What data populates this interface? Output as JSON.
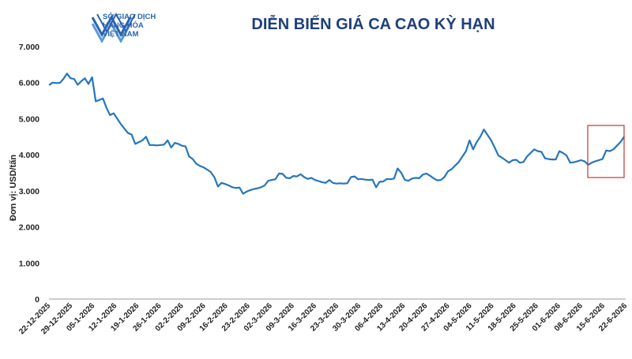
{
  "logo": {
    "line1": "SỞ GIAO DỊCH",
    "line2": "HÀNG HÓA",
    "line3": "VIỆT NAM",
    "icon": "stacked-chevron-logo-icon"
  },
  "title": "DIỄN BIẾN GIÁ CA CAO KỲ HẠN",
  "colors": {
    "line": "#2576bd",
    "title": "#1f3f7a",
    "logo": "#2a64b0",
    "highlight": "#c0392b"
  },
  "chart_data": {
    "type": "line",
    "title": "DIỄN BIẾN GIÁ CA CAO KỲ HẠN",
    "ylabel": "Đơn vị: USD/tấn",
    "xlabel": "",
    "ylim": [
      0,
      7000
    ],
    "yticks": [
      0,
      1000,
      2000,
      3000,
      4000,
      5000,
      6000,
      7000
    ],
    "ytick_labels": [
      "0",
      "1.000",
      "2.000",
      "3.000",
      "4.000",
      "5.000",
      "6.000",
      "7.000"
    ],
    "grid": false,
    "x_tick_labels": [
      "22-12-2025",
      "29-12-2025",
      "05-1-2026",
      "12-1-2026",
      "19-1-2026",
      "26-1-2026",
      "02-2-2026",
      "09-2-2026",
      "16-2-2026",
      "23-2-2026",
      "02-3-2026",
      "09-3-2026",
      "16-3-2026",
      "23-3-2026",
      "30-3-2026",
      "06-4-2026",
      "13-4-2026",
      "20-4-2026",
      "27-4-2026",
      "04-5-2026",
      "11-5-2026",
      "18-5-2026",
      "25-5-2026",
      "01-6-2026",
      "08-6-2026",
      "15-6-2026",
      "22-6-2026"
    ],
    "values": [
      5930,
      6000,
      5990,
      5990,
      6100,
      6250,
      6120,
      6100,
      5940,
      6040,
      6120,
      5960,
      6150,
      5480,
      5520,
      5560,
      5300,
      5100,
      5150,
      5000,
      4850,
      4720,
      4600,
      4560,
      4300,
      4350,
      4400,
      4500,
      4270,
      4270,
      4260,
      4270,
      4280,
      4400,
      4200,
      4330,
      4300,
      4250,
      4230,
      3950,
      3880,
      3750,
      3690,
      3650,
      3590,
      3520,
      3380,
      3120,
      3220,
      3190,
      3150,
      3100,
      3080,
      3090,
      2920,
      2980,
      3020,
      3050,
      3070,
      3100,
      3150,
      3280,
      3300,
      3320,
      3480,
      3470,
      3360,
      3350,
      3410,
      3400,
      3460,
      3380,
      3330,
      3360,
      3300,
      3270,
      3240,
      3220,
      3300,
      3220,
      3200,
      3210,
      3200,
      3210,
      3380,
      3400,
      3320,
      3330,
      3310,
      3300,
      3310,
      3100,
      3250,
      3260,
      3330,
      3320,
      3340,
      3620,
      3500,
      3300,
      3280,
      3340,
      3360,
      3350,
      3450,
      3480,
      3420,
      3350,
      3290,
      3300,
      3380,
      3540,
      3600,
      3700,
      3800,
      3950,
      4100,
      4400,
      4150,
      4350,
      4500,
      4700,
      4550,
      4400,
      4200,
      3980,
      3920,
      3850,
      3780,
      3850,
      3860,
      3780,
      3800,
      3950,
      4050,
      4150,
      4100,
      4080,
      3900,
      3880,
      3870,
      3870,
      4100,
      4050,
      3980,
      3780,
      3790,
      3820,
      3850,
      3820,
      3720,
      3780,
      3820,
      3850,
      3880,
      4120,
      4100,
      4150,
      4250,
      4350,
      4500
    ],
    "highlight_box_label": "",
    "legend": "none"
  }
}
